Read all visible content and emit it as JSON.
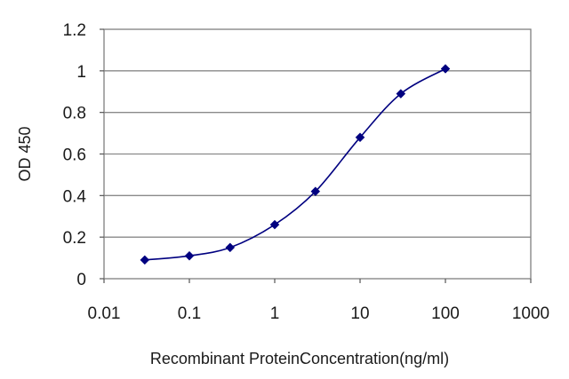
{
  "chart_data": {
    "type": "line",
    "title": "",
    "xlabel": "Recombinant ProteinConcentration(ng/ml)",
    "ylabel": "OD 450",
    "x_scale": "log",
    "xlim": [
      0.01,
      1000
    ],
    "ylim": [
      0,
      1.2
    ],
    "x_ticks": [
      "0.01",
      "0.1",
      "1",
      "10",
      "100",
      "1000"
    ],
    "y_ticks": [
      "0",
      "0.2",
      "0.4",
      "0.6",
      "0.8",
      "1",
      "1.2"
    ],
    "grid": "horizontal",
    "legend": "none",
    "series": [
      {
        "color": "#000080",
        "marker": "diamond",
        "x": [
          0.03,
          0.1,
          0.3,
          1,
          3,
          10,
          30,
          100
        ],
        "y": [
          0.09,
          0.11,
          0.15,
          0.26,
          0.42,
          0.68,
          0.89,
          1.01
        ]
      }
    ]
  }
}
